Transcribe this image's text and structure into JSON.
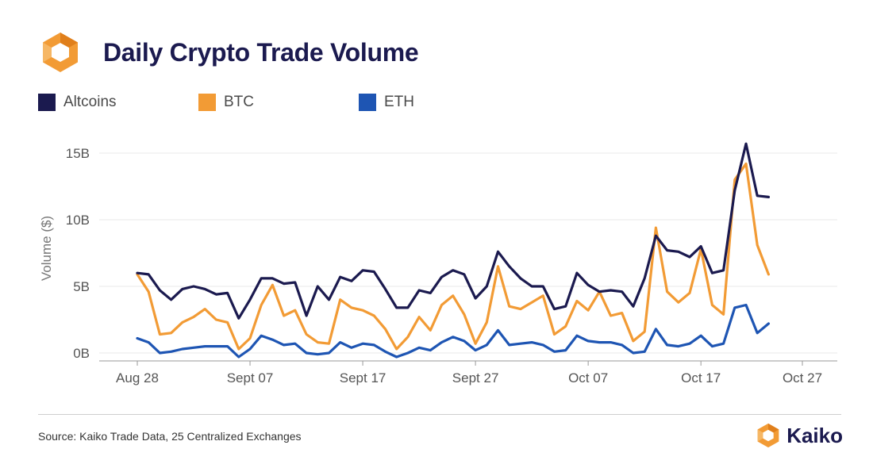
{
  "header": {
    "title": "Daily Crypto Trade Volume",
    "logo_icon": "kaiko-hexagon-icon"
  },
  "colors": {
    "Altcoins": "#1b1a4f",
    "BTC": "#f29b35",
    "ETH": "#1e55b3",
    "brand": "#f29b35"
  },
  "legend": [
    {
      "label": "Altcoins",
      "color": "#1b1a4f"
    },
    {
      "label": "BTC",
      "color": "#f29b35"
    },
    {
      "label": "ETH",
      "color": "#1e55b3"
    }
  ],
  "chart_data": {
    "type": "line",
    "title": "Daily Crypto Trade Volume",
    "xlabel": "",
    "ylabel": "Volume ($)",
    "x_start": "Aug 28",
    "x_ticks": [
      {
        "label": "Aug 28",
        "index": 0
      },
      {
        "label": "Sept 07",
        "index": 10
      },
      {
        "label": "Sept 17",
        "index": 20
      },
      {
        "label": "Sept 27",
        "index": 30
      },
      {
        "label": "Oct 07",
        "index": 40
      },
      {
        "label": "Oct 17",
        "index": 50
      },
      {
        "label": "Oct 27",
        "index": 59
      }
    ],
    "y_ticks": [
      {
        "label": "0B",
        "value": 0
      },
      {
        "label": "5B",
        "value": 5
      },
      {
        "label": "10B",
        "value": 10
      },
      {
        "label": "15B",
        "value": 15
      }
    ],
    "ylim": [
      0,
      16.5
    ],
    "grid": true,
    "legend_position": "top-left",
    "series": [
      {
        "name": "Altcoins",
        "color": "#1b1a4f",
        "values": [
          6.0,
          5.9,
          4.7,
          4.0,
          4.8,
          5.0,
          4.8,
          4.4,
          4.5,
          2.6,
          4.0,
          5.6,
          5.6,
          5.2,
          5.3,
          2.8,
          5.0,
          4.0,
          5.7,
          5.4,
          6.2,
          6.1,
          4.8,
          3.4,
          3.4,
          4.7,
          4.5,
          5.7,
          6.2,
          5.9,
          4.1,
          5.0,
          7.6,
          6.5,
          5.6,
          5.0,
          5.0,
          3.3,
          3.5,
          6.0,
          5.1,
          4.6,
          4.7,
          4.6,
          3.5,
          5.6,
          8.8,
          7.7,
          7.6,
          7.2,
          8.0,
          6.0,
          6.2,
          12.2,
          15.7,
          11.8,
          11.7
        ]
      },
      {
        "name": "BTC",
        "color": "#f29b35",
        "values": [
          5.9,
          4.6,
          1.4,
          1.5,
          2.3,
          2.7,
          3.3,
          2.5,
          2.3,
          0.3,
          1.1,
          3.6,
          5.1,
          2.8,
          3.2,
          1.4,
          0.8,
          0.7,
          4.0,
          3.4,
          3.2,
          2.8,
          1.8,
          0.3,
          1.2,
          2.7,
          1.7,
          3.6,
          4.3,
          2.9,
          0.7,
          2.3,
          6.5,
          3.5,
          3.3,
          3.8,
          4.3,
          1.4,
          2.0,
          3.9,
          3.2,
          4.6,
          2.8,
          3.0,
          0.9,
          1.6,
          9.4,
          4.6,
          3.8,
          4.5,
          7.8,
          3.6,
          2.9,
          13.0,
          14.2,
          8.1,
          5.9
        ]
      },
      {
        "name": "ETH",
        "color": "#1e55b3",
        "values": [
          1.1,
          0.8,
          0.0,
          0.1,
          0.3,
          0.4,
          0.5,
          0.5,
          0.5,
          -0.3,
          0.3,
          1.3,
          1.0,
          0.6,
          0.7,
          0.0,
          -0.1,
          0.0,
          0.8,
          0.4,
          0.7,
          0.6,
          0.1,
          -0.3,
          0.0,
          0.4,
          0.2,
          0.8,
          1.2,
          0.9,
          0.2,
          0.6,
          1.7,
          0.6,
          0.7,
          0.8,
          0.6,
          0.1,
          0.2,
          1.3,
          0.9,
          0.8,
          0.8,
          0.6,
          0.0,
          0.1,
          1.8,
          0.6,
          0.5,
          0.7,
          1.3,
          0.5,
          0.7,
          3.4,
          3.6,
          1.5,
          2.2
        ]
      }
    ]
  },
  "footer": {
    "source": "Source: Kaiko Trade Data, 25 Centralized Exchanges",
    "brand": "Kaiko",
    "brand_icon": "kaiko-hexagon-icon"
  }
}
